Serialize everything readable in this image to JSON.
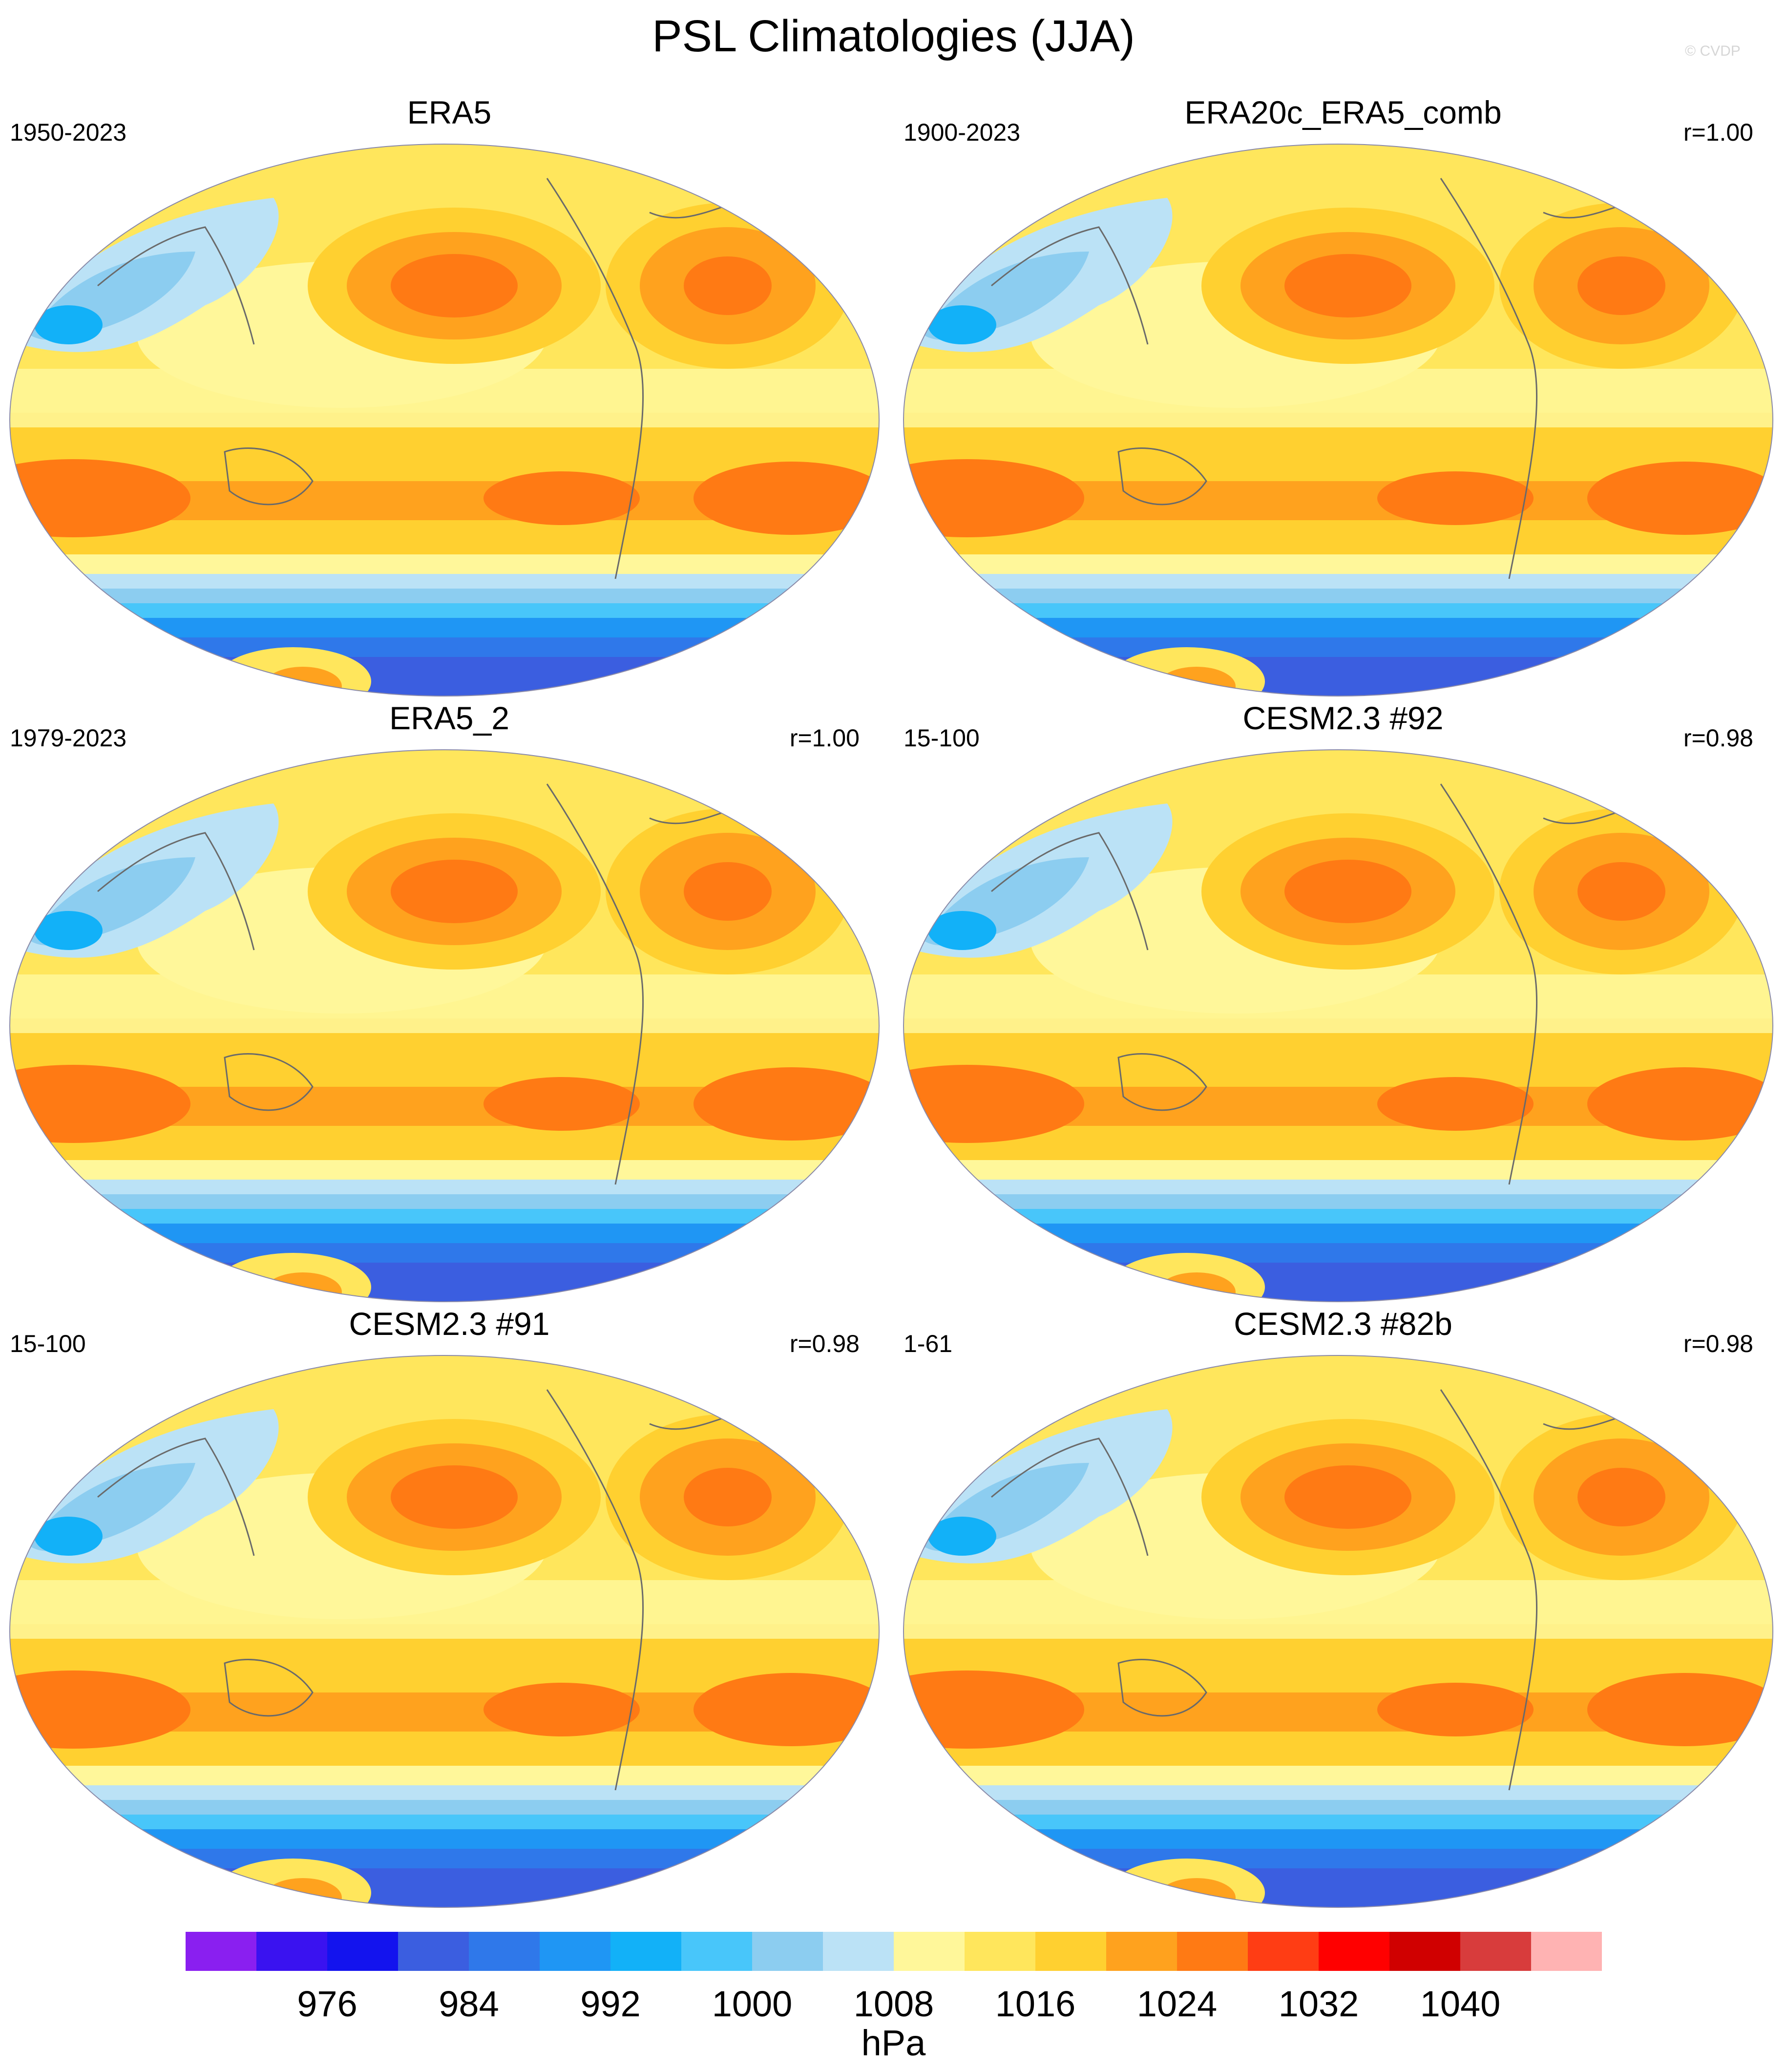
{
  "figure": {
    "title": "PSL Climatologies (JJA)",
    "watermark": "© CVDP",
    "units": "hPa"
  },
  "colors": {
    "levels": [
      "#8a1ff0",
      "#3a12f0",
      "#1313ee",
      "#3b5ee0",
      "#2f78ea",
      "#1f96f4",
      "#12b1f8",
      "#48c6fa",
      "#8ccdf0",
      "#bbe2f6",
      "#fff79a",
      "#ffe65c",
      "#ffd030",
      "#ffa21e",
      "#ff7a14",
      "#ff3d14",
      "#ff0000",
      "#d00000",
      "#d83c3c",
      "#ffb3b3"
    ]
  },
  "colorbar": {
    "ticks": [
      "976",
      "984",
      "992",
      "1000",
      "1008",
      "1016",
      "1024",
      "1032",
      "1040"
    ]
  },
  "panels": [
    {
      "title": "ERA5",
      "left_label": "1950-2023",
      "right_label": ""
    },
    {
      "title": "ERA20c_ERA5_comb",
      "left_label": "1900-2023",
      "right_label": "r=1.00"
    },
    {
      "title": "ERA5_2",
      "left_label": "1979-2023",
      "right_label": "r=1.00"
    },
    {
      "title": "CESM2.3 #92",
      "left_label": "15-100",
      "right_label": "r=0.98"
    },
    {
      "title": "CESM2.3 #91",
      "left_label": "15-100",
      "right_label": "r=0.98"
    },
    {
      "title": "CESM2.3 #82b",
      "left_label": "1-61",
      "right_label": "r=0.98"
    }
  ]
}
